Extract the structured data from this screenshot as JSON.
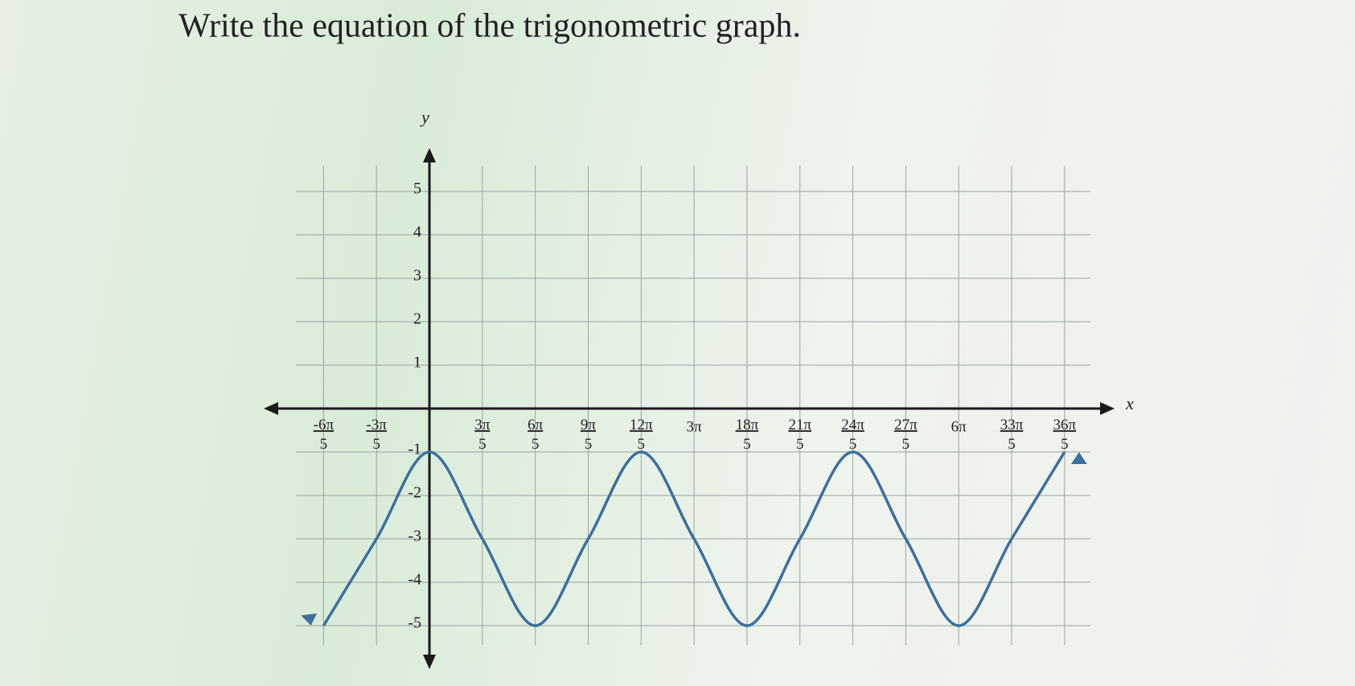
{
  "chart_data": {
    "type": "line",
    "title": "Write the equation of the trigonometric graph.",
    "x_label": "x",
    "y_label": "y",
    "x": [
      -3.76991,
      -1.88496,
      0,
      1.88496,
      3.76991,
      5.65487,
      7.53982,
      9.42478,
      11.30973,
      13.19469,
      15.07964,
      16.9646,
      18.84956,
      20.73451,
      22.61947
    ],
    "series": [
      {
        "color": "#3b6f9f",
        "values": [
          -5,
          -3,
          -1,
          -3,
          -5,
          -3,
          -1,
          -3,
          -5,
          -3,
          -1,
          -3,
          -5,
          -3,
          -1
        ]
      }
    ],
    "xlim": [
      -5.9,
      24.4
    ],
    "ylim": [
      -6,
      6
    ],
    "xticks": [
      {
        "value": -3.76991,
        "label": "-6π/5"
      },
      {
        "value": -1.88496,
        "label": "-3π/5"
      },
      {
        "value": 1.88496,
        "label": "3π/5"
      },
      {
        "value": 3.76991,
        "label": "6π/5"
      },
      {
        "value": 5.65487,
        "label": "9π/5"
      },
      {
        "value": 7.53982,
        "label": "12π/5"
      },
      {
        "value": 9.42478,
        "label": "3π"
      },
      {
        "value": 11.30973,
        "label": "18π/5"
      },
      {
        "value": 13.19469,
        "label": "21π/5"
      },
      {
        "value": 15.07964,
        "label": "24π/5"
      },
      {
        "value": 16.9646,
        "label": "27π/5"
      },
      {
        "value": 18.84956,
        "label": "6π"
      },
      {
        "value": 20.73451,
        "label": "33π/5"
      },
      {
        "value": 22.61947,
        "label": "36π/5"
      }
    ],
    "yticks": [
      -5,
      -4,
      -3,
      -2,
      -1,
      1,
      2,
      3,
      4,
      5
    ],
    "grid": true
  }
}
